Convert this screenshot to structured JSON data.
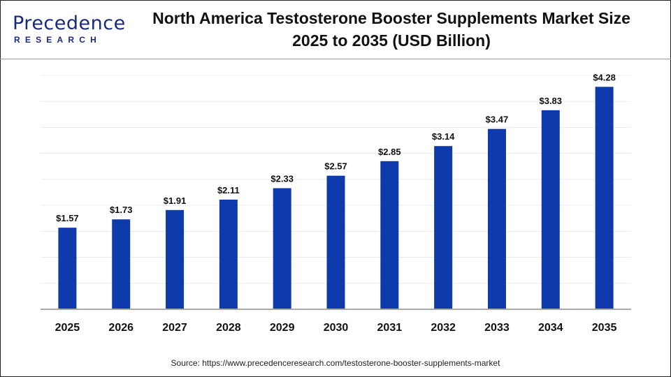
{
  "logo": {
    "main": "Precedence",
    "sub": "RESEARCH"
  },
  "header": {
    "title_line1": "North America Testosterone Booster Supplements Market Size",
    "title_line2": "2025 to 2035 (USD Billion)"
  },
  "source": "Source: https://www.precedenceresearch.com/testosterone-booster-supplements-market",
  "chart_data": {
    "type": "bar",
    "title": "North America Testosterone Booster Supplements Market Size 2025 to 2035 (USD Billion)",
    "categories": [
      "2025",
      "2026",
      "2027",
      "2028",
      "2029",
      "2030",
      "2031",
      "2032",
      "2033",
      "2034",
      "2035"
    ],
    "values": [
      1.57,
      1.73,
      1.91,
      2.11,
      2.33,
      2.57,
      2.85,
      3.14,
      3.47,
      3.83,
      4.28
    ],
    "data_labels": [
      "$1.57",
      "$1.73",
      "$1.91",
      "$2.11",
      "$2.33",
      "$2.57",
      "$2.85",
      "$3.14",
      "$3.47",
      "$3.83",
      "$4.28"
    ],
    "xlabel": "",
    "ylabel": "",
    "ylim": [
      0,
      4.5
    ],
    "grid": true,
    "grid_step": 0.5,
    "bar_color": "#0f3aab"
  }
}
